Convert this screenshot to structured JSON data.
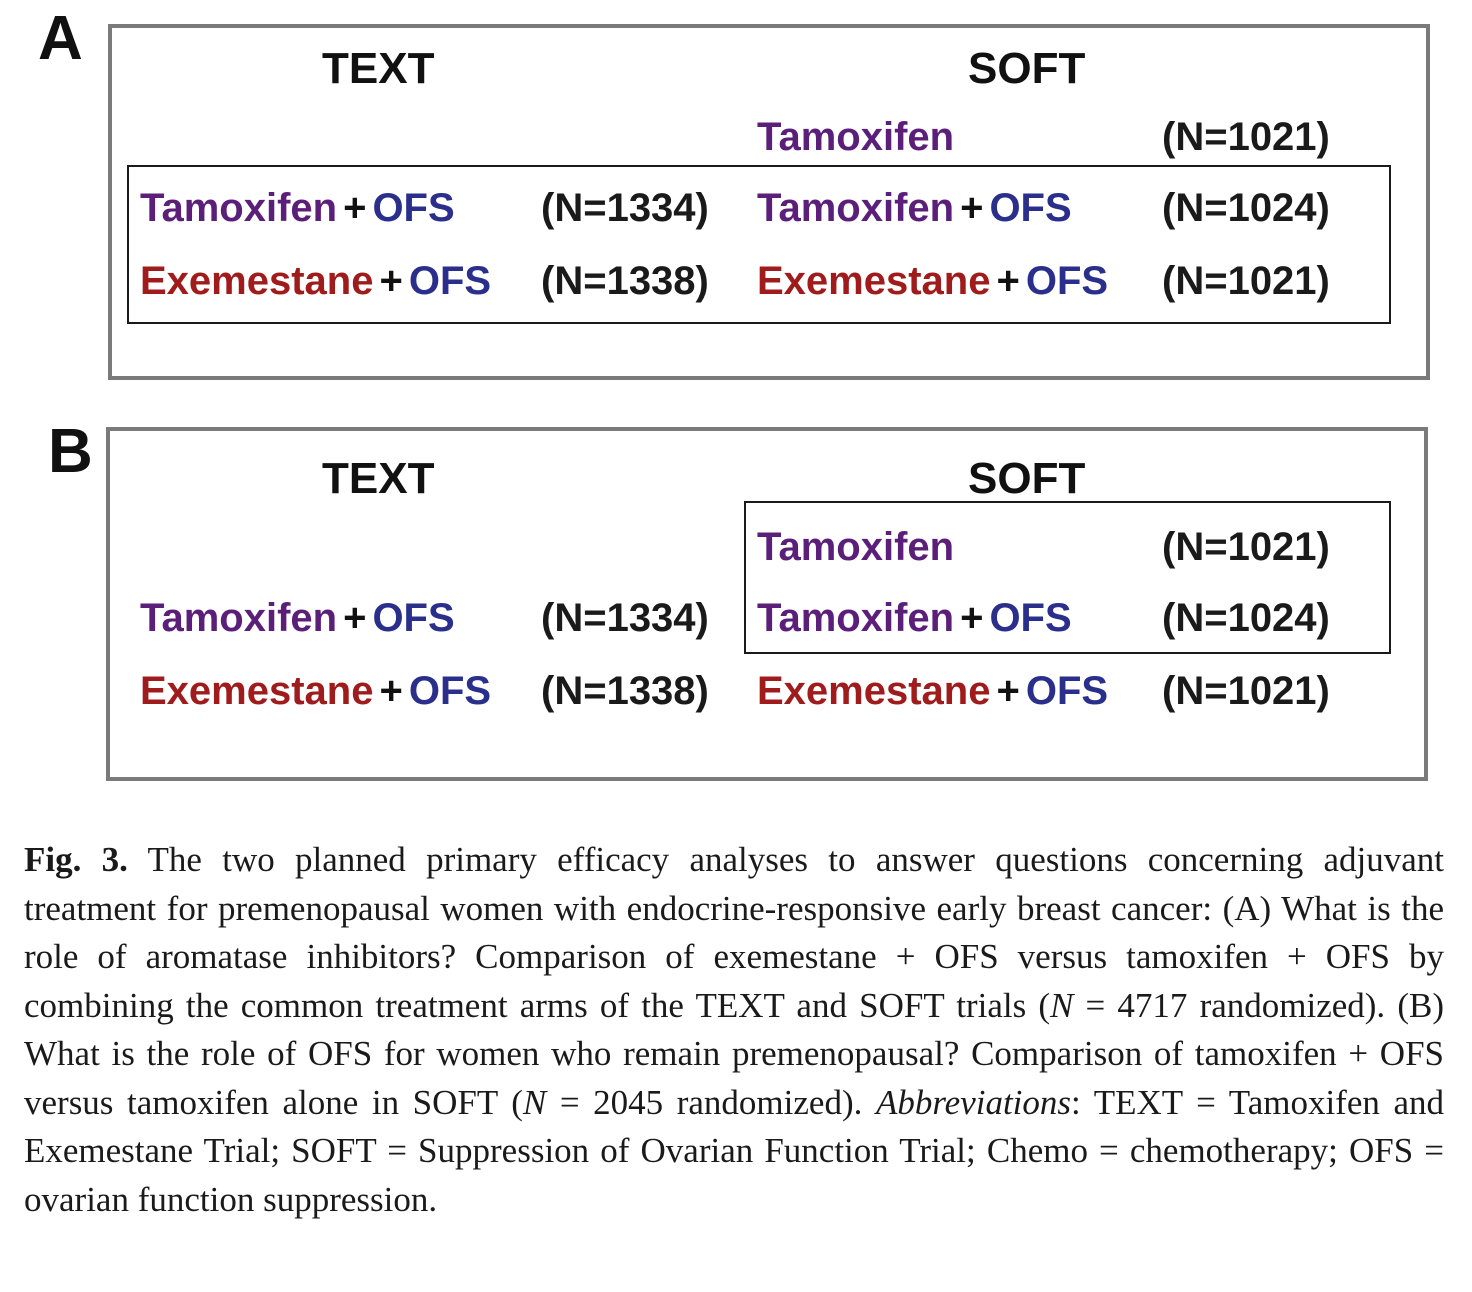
{
  "colors": {
    "tamoxifen": "#5b1f7a",
    "exemestane": "#a01c1c",
    "ofs": "#2b2f8c",
    "outer_border": "#7a7a7a",
    "inner_border": "#1a1a1a"
  },
  "panels": [
    {
      "letter": "A",
      "headers": {
        "text": "TEXT",
        "soft": "SOFT"
      },
      "text_arms": [
        {
          "drug": "Tamoxifen",
          "plus": "+",
          "ofs": "OFS",
          "n": "(N=1334)"
        },
        {
          "drug": "Exemestane",
          "plus": "+",
          "ofs": "OFS",
          "n": "(N=1338)"
        }
      ],
      "soft_arms": [
        {
          "drug": "Tamoxifen",
          "n": "(N=1021)"
        },
        {
          "drug": "Tamoxifen",
          "plus": "+",
          "ofs": "OFS",
          "n": "(N=1024)"
        },
        {
          "drug": "Exemestane",
          "plus": "+",
          "ofs": "OFS",
          "n": "(N=1021)"
        }
      ]
    },
    {
      "letter": "B",
      "headers": {
        "text": "TEXT",
        "soft": "SOFT"
      },
      "text_arms": [
        {
          "drug": "Tamoxifen",
          "plus": "+",
          "ofs": "OFS",
          "n": "(N=1334)"
        },
        {
          "drug": "Exemestane",
          "plus": "+",
          "ofs": "OFS",
          "n": "(N=1338)"
        }
      ],
      "soft_arms": [
        {
          "drug": "Tamoxifen",
          "n": "(N=1021)"
        },
        {
          "drug": "Tamoxifen",
          "plus": "+",
          "ofs": "OFS",
          "n": "(N=1024)"
        },
        {
          "drug": "Exemestane",
          "plus": "+",
          "ofs": "OFS",
          "n": "(N=1021)"
        }
      ]
    }
  ],
  "caption": {
    "label": "Fig. 3.",
    "part1": " The two planned primary efficacy analyses to answer questions concerning adjuvant treatment for premenopausal women with endocrine-responsive early breast cancer: (A) What is the role of aromatase inhibitors? Comparison of exemestane + OFS versus tamoxifen + OFS by combining the common treatment arms of the TEXT and SOFT trials (",
    "n1_var": "N",
    "part2": " = 4717 randomized). (B) What is the role of OFS for women who remain premenopausal? Comparison of tamoxifen + OFS versus tamoxifen alone in SOFT (",
    "n2_var": "N",
    "part3": " = 2045 randomized). ",
    "abbrev_label": "Abbreviations",
    "part4": ": TEXT = Tamoxifen and Exemestane Trial; SOFT = Suppression of Ovarian Function Trial; Chemo = chemotherapy; OFS = ovarian function suppression."
  }
}
